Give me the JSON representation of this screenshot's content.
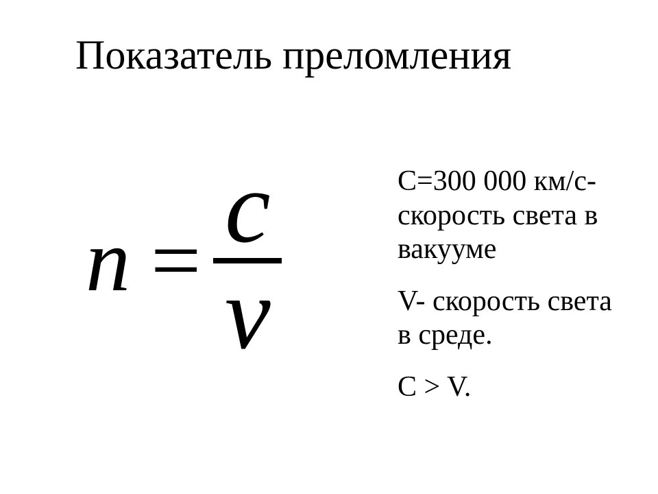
{
  "title": "Показатель преломления",
  "formula": {
    "lhs": "n",
    "eq": "=",
    "numerator": "c",
    "denominator": "v"
  },
  "definitions": {
    "c_def": "С=300 000 км/с- скорость света в вакууме",
    "v_def": "V- скорость света в среде.",
    "relation": "C > V."
  },
  "styling": {
    "background_color": "#ffffff",
    "text_color": "#000000",
    "title_fontsize": 60,
    "title_weight": "normal",
    "formula_fontsize": 130,
    "formula_style": "italic",
    "frac_fontsize": 150,
    "frac_bar_width": 100,
    "frac_bar_height": 8,
    "def_fontsize": 42,
    "def_lineheight": 1.18,
    "font_family": "Times New Roman"
  }
}
